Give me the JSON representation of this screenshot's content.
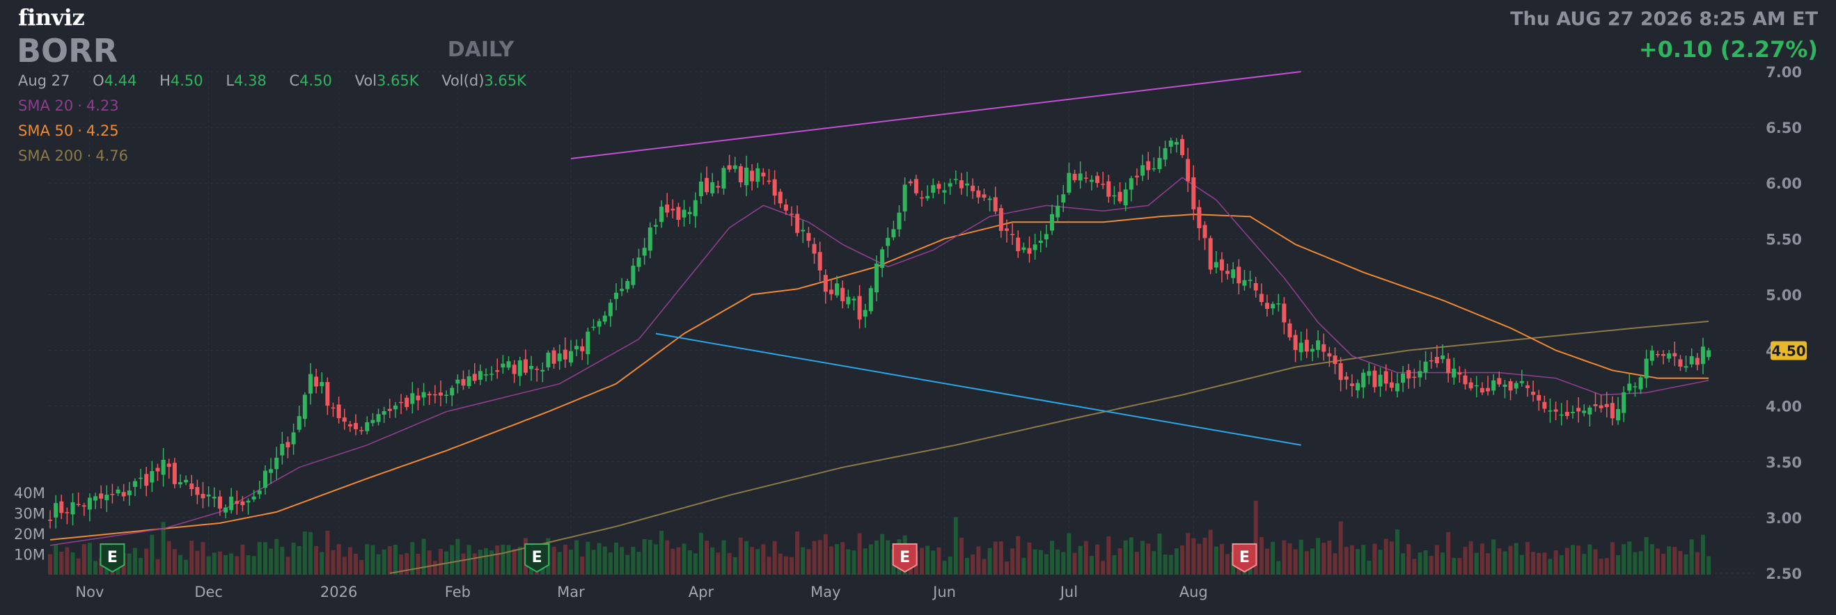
{
  "header": {
    "logo": "finviz",
    "ticker": "BORR",
    "timeframe": "DAILY",
    "datetime": "Thu AUG 27 2026 8:25 AM ET",
    "change": "+0.10 (2.27%)"
  },
  "ohlc": {
    "date": "Aug 27",
    "open_label": "O",
    "open": "4.44",
    "high_label": "H",
    "high": "4.50",
    "low_label": "L",
    "low": "4.38",
    "close_label": "C",
    "close": "4.50",
    "vol_label": "Vol",
    "vol": "3.65K",
    "vold_label": "Vol(d)",
    "vold": "3.65K"
  },
  "sma_legend": [
    {
      "label": "SMA 20",
      "value": "4.23",
      "color": "#8d3e8c"
    },
    {
      "label": "SMA 50",
      "value": "4.25",
      "color": "#f08a33"
    },
    {
      "label": "SMA 200",
      "value": "4.76",
      "color": "#8d7a46"
    }
  ],
  "colors": {
    "up": "#2fb55d",
    "down": "#f0585f",
    "vol_up": "#1f5a36",
    "vol_down": "#6a2e35",
    "grid": "#2e323b",
    "axis_text": "#8c909a",
    "upper_trendline": "#c64fd6",
    "lower_trendline": "#2aa7e8",
    "price_tag": "#e8b92a"
  },
  "chart_data": {
    "type": "candlestick",
    "ylim": [
      2.5,
      7.0
    ],
    "y_ticks": [
      "7.00",
      "6.50",
      "6.00",
      "5.50",
      "5.00",
      "4.50",
      "4.00",
      "3.50",
      "3.00",
      "2.50"
    ],
    "volume_ticks": [
      "40M",
      "30M",
      "20M",
      "10M"
    ],
    "volume_ylim": [
      0,
      40
    ],
    "x_labels": [
      "Nov",
      "Dec",
      "2026",
      "Feb",
      "Mar",
      "Apr",
      "May",
      "Jun",
      "Jul",
      "Aug"
    ],
    "last_price": "4.50",
    "anchors": [
      [
        0,
        3.05
      ],
      [
        12,
        3.2
      ],
      [
        20,
        3.45
      ],
      [
        26,
        3.18
      ],
      [
        30,
        3.1
      ],
      [
        36,
        3.2
      ],
      [
        40,
        3.5
      ],
      [
        44,
        3.9
      ],
      [
        46,
        4.3
      ],
      [
        50,
        4.0
      ],
      [
        53,
        3.75
      ],
      [
        58,
        3.95
      ],
      [
        64,
        4.05
      ],
      [
        70,
        4.1
      ],
      [
        76,
        4.3
      ],
      [
        82,
        4.35
      ],
      [
        88,
        4.4
      ],
      [
        94,
        4.55
      ],
      [
        98,
        4.75
      ],
      [
        102,
        5.2
      ],
      [
        105,
        5.5
      ],
      [
        108,
        5.75
      ],
      [
        112,
        5.7
      ],
      [
        115,
        5.95
      ],
      [
        120,
        6.1
      ],
      [
        126,
        6.05
      ],
      [
        130,
        5.8
      ],
      [
        134,
        5.45
      ],
      [
        137,
        5.1
      ],
      [
        140,
        5.0
      ],
      [
        144,
        4.8
      ],
      [
        146,
        5.2
      ],
      [
        149,
        5.6
      ],
      [
        151,
        5.95
      ],
      [
        155,
        5.9
      ],
      [
        160,
        6.0
      ],
      [
        165,
        5.9
      ],
      [
        168,
        5.55
      ],
      [
        172,
        5.4
      ],
      [
        176,
        5.5
      ],
      [
        180,
        6.1
      ],
      [
        185,
        6.0
      ],
      [
        188,
        5.85
      ],
      [
        192,
        6.1
      ],
      [
        196,
        6.2
      ],
      [
        198,
        6.45
      ],
      [
        200,
        6.2
      ],
      [
        202,
        5.7
      ],
      [
        205,
        5.3
      ],
      [
        208,
        5.15
      ],
      [
        212,
        5.2
      ],
      [
        214,
        5.0
      ],
      [
        218,
        4.8
      ],
      [
        220,
        4.55
      ],
      [
        225,
        4.5
      ],
      [
        228,
        4.25
      ],
      [
        232,
        4.25
      ],
      [
        236,
        4.2
      ],
      [
        240,
        4.3
      ],
      [
        244,
        4.4
      ],
      [
        248,
        4.35
      ],
      [
        252,
        4.2
      ],
      [
        256,
        4.15
      ],
      [
        260,
        4.15
      ],
      [
        264,
        4.0
      ],
      [
        268,
        3.9
      ],
      [
        272,
        3.95
      ],
      [
        276,
        3.9
      ],
      [
        280,
        4.2
      ],
      [
        282,
        4.45
      ],
      [
        286,
        4.4
      ],
      [
        290,
        4.4
      ],
      [
        293,
        4.5
      ]
    ],
    "sma20_anchors": [
      [
        0,
        2.75
      ],
      [
        20,
        2.9
      ],
      [
        30,
        3.05
      ],
      [
        44,
        3.45
      ],
      [
        56,
        3.65
      ],
      [
        70,
        3.95
      ],
      [
        90,
        4.2
      ],
      [
        104,
        4.6
      ],
      [
        112,
        5.1
      ],
      [
        120,
        5.6
      ],
      [
        126,
        5.8
      ],
      [
        134,
        5.65
      ],
      [
        140,
        5.45
      ],
      [
        148,
        5.25
      ],
      [
        156,
        5.4
      ],
      [
        166,
        5.7
      ],
      [
        176,
        5.8
      ],
      [
        186,
        5.75
      ],
      [
        194,
        5.8
      ],
      [
        200,
        6.05
      ],
      [
        206,
        5.85
      ],
      [
        212,
        5.5
      ],
      [
        218,
        5.15
      ],
      [
        224,
        4.75
      ],
      [
        230,
        4.45
      ],
      [
        238,
        4.3
      ],
      [
        246,
        4.3
      ],
      [
        256,
        4.3
      ],
      [
        266,
        4.25
      ],
      [
        274,
        4.1
      ],
      [
        282,
        4.12
      ],
      [
        293,
        4.23
      ]
    ],
    "sma50_anchors": [
      [
        0,
        2.8
      ],
      [
        20,
        2.9
      ],
      [
        30,
        2.95
      ],
      [
        40,
        3.05
      ],
      [
        56,
        3.35
      ],
      [
        70,
        3.6
      ],
      [
        88,
        3.95
      ],
      [
        100,
        4.2
      ],
      [
        112,
        4.65
      ],
      [
        124,
        5.0
      ],
      [
        132,
        5.05
      ],
      [
        146,
        5.25
      ],
      [
        158,
        5.5
      ],
      [
        170,
        5.65
      ],
      [
        186,
        5.65
      ],
      [
        196,
        5.7
      ],
      [
        202,
        5.72
      ],
      [
        212,
        5.7
      ],
      [
        220,
        5.45
      ],
      [
        232,
        5.2
      ],
      [
        246,
        4.95
      ],
      [
        258,
        4.7
      ],
      [
        266,
        4.5
      ],
      [
        276,
        4.32
      ],
      [
        284,
        4.25
      ],
      [
        293,
        4.25
      ]
    ],
    "sma200_anchors": [
      [
        60,
        2.5
      ],
      [
        80,
        2.68
      ],
      [
        100,
        2.92
      ],
      [
        120,
        3.2
      ],
      [
        140,
        3.45
      ],
      [
        160,
        3.65
      ],
      [
        180,
        3.88
      ],
      [
        200,
        4.1
      ],
      [
        220,
        4.35
      ],
      [
        240,
        4.5
      ],
      [
        260,
        4.6
      ],
      [
        280,
        4.7
      ],
      [
        293,
        4.76
      ]
    ],
    "upper_trendline": {
      "x": [
        "2026-02-27",
        "2026-08-27"
      ],
      "y": [
        6.22,
        7.0
      ]
    },
    "lower_trendline": {
      "x": [
        "2026-03-20",
        "2026-08-27"
      ],
      "y": [
        4.65,
        3.65
      ]
    },
    "earnings_markers": [
      {
        "label": "E",
        "type": "beat",
        "x": "2025-11-06"
      },
      {
        "label": "E",
        "type": "beat",
        "x": "2026-02-19"
      },
      {
        "label": "E",
        "type": "miss",
        "x": "2026-05-21"
      },
      {
        "label": "E",
        "type": "miss",
        "x": "2026-08-13"
      }
    ]
  }
}
